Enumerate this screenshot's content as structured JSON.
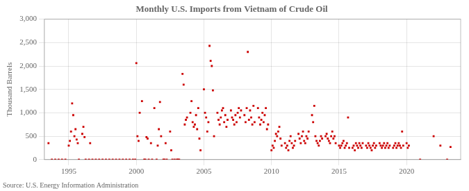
{
  "chart_data": {
    "type": "scatter",
    "title": "Monthly U.S. Imports from Vietnam of Crude Oil",
    "ylabel": "Thousand Barrels",
    "annotations": [
      "Source: U.S. Energy Information Administration"
    ],
    "color": "#cc0000",
    "marker": "square",
    "grid": true,
    "xlim": [
      1993.2,
      2024.0
    ],
    "xticks": [
      1995,
      2000,
      2005,
      2010,
      2015,
      2020
    ],
    "ylim": [
      0,
      3000
    ],
    "yticks": [
      0,
      500,
      {
        "value": 1000,
        "label": "1,000"
      },
      {
        "value": 1500,
        "label": "1,500"
      },
      {
        "value": 2000,
        "label": "2,000"
      },
      {
        "value": 2500,
        "label": "2,500"
      },
      {
        "value": 3000,
        "label": "3,000"
      }
    ],
    "x": [
      1993.5,
      1993.75,
      1994.0,
      1994.25,
      1994.5,
      1994.75,
      1995.0,
      1995.083,
      1995.167,
      1995.25,
      1995.333,
      1995.417,
      1995.5,
      1995.583,
      1995.667,
      1995.75,
      1996.0,
      1996.083,
      1996.167,
      1996.25,
      1996.5,
      1996.583,
      1996.75,
      1997.0,
      1997.25,
      1997.5,
      1997.75,
      1998.0,
      1998.25,
      1998.5,
      1998.75,
      1999.0,
      1999.25,
      1999.5,
      1999.75,
      1999.917,
      2000.0,
      2000.083,
      2000.167,
      2000.25,
      2000.417,
      2000.583,
      2000.667,
      2000.75,
      2000.833,
      2000.917,
      2001.083,
      2001.167,
      2001.333,
      2001.5,
      2001.583,
      2001.667,
      2001.75,
      2001.833,
      2002.0,
      2002.083,
      2002.167,
      2002.25,
      2002.5,
      2002.583,
      2002.667,
      2002.833,
      2003.0,
      2003.083,
      2003.167,
      2003.417,
      2003.5,
      2003.583,
      2003.667,
      2003.75,
      2004.0,
      2004.083,
      2004.167,
      2004.25,
      2004.333,
      2004.417,
      2004.5,
      2004.583,
      2004.667,
      2004.75,
      2005.0,
      2005.083,
      2005.167,
      2005.25,
      2005.333,
      2005.417,
      2005.5,
      2005.583,
      2005.667,
      2005.75,
      2006.0,
      2006.083,
      2006.167,
      2006.25,
      2006.333,
      2006.417,
      2006.5,
      2006.583,
      2006.667,
      2006.75,
      2007.0,
      2007.083,
      2007.167,
      2007.25,
      2007.333,
      2007.417,
      2007.5,
      2007.583,
      2007.667,
      2007.75,
      2008.0,
      2008.083,
      2008.167,
      2008.25,
      2008.333,
      2008.417,
      2008.5,
      2008.583,
      2008.667,
      2008.75,
      2009.0,
      2009.083,
      2009.167,
      2009.25,
      2009.333,
      2009.417,
      2009.5,
      2009.583,
      2009.667,
      2009.75,
      2010.0,
      2010.083,
      2010.167,
      2010.25,
      2010.333,
      2010.417,
      2010.5,
      2010.583,
      2010.667,
      2010.75,
      2011.0,
      2011.083,
      2011.167,
      2011.25,
      2011.333,
      2011.417,
      2011.5,
      2011.583,
      2011.667,
      2011.75,
      2012.0,
      2012.083,
      2012.167,
      2012.25,
      2012.333,
      2012.417,
      2012.5,
      2012.583,
      2012.667,
      2012.75,
      2013.0,
      2013.083,
      2013.167,
      2013.25,
      2013.333,
      2013.417,
      2013.5,
      2013.583,
      2013.667,
      2013.75,
      2014.0,
      2014.083,
      2014.167,
      2014.25,
      2014.333,
      2014.417,
      2014.5,
      2014.583,
      2014.667,
      2014.75,
      2015.0,
      2015.083,
      2015.167,
      2015.25,
      2015.333,
      2015.417,
      2015.5,
      2015.583,
      2015.667,
      2015.75,
      2016.0,
      2016.083,
      2016.167,
      2016.25,
      2016.333,
      2016.417,
      2016.5,
      2016.583,
      2016.667,
      2016.75,
      2017.0,
      2017.083,
      2017.167,
      2017.25,
      2017.333,
      2017.417,
      2017.5,
      2017.583,
      2017.667,
      2017.75,
      2018.0,
      2018.083,
      2018.167,
      2018.25,
      2018.333,
      2018.417,
      2018.5,
      2018.583,
      2018.667,
      2018.75,
      2019.0,
      2019.083,
      2019.167,
      2019.25,
      2019.333,
      2019.417,
      2019.5,
      2019.583,
      2019.667,
      2019.75,
      2020.0,
      2020.083,
      2020.167,
      2021.0,
      2022.0,
      2022.5,
      2023.0,
      2023.25
    ],
    "values": [
      350,
      0,
      0,
      0,
      0,
      0,
      300,
      400,
      600,
      1200,
      950,
      500,
      650,
      430,
      350,
      0,
      550,
      700,
      480,
      0,
      0,
      350,
      0,
      0,
      0,
      0,
      0,
      0,
      0,
      0,
      0,
      0,
      0,
      0,
      0,
      0,
      2060,
      500,
      400,
      1000,
      1250,
      0,
      0,
      480,
      450,
      0,
      350,
      0,
      1100,
      0,
      300,
      650,
      1230,
      500,
      0,
      0,
      350,
      0,
      600,
      200,
      0,
      0,
      0,
      0,
      0,
      1830,
      1600,
      750,
      850,
      900,
      1000,
      1250,
      800,
      700,
      750,
      950,
      650,
      1100,
      450,
      200,
      1500,
      1000,
      900,
      600,
      800,
      2430,
      2110,
      2000,
      1480,
      500,
      1000,
      850,
      750,
      900,
      1050,
      1100,
      800,
      950,
      700,
      850,
      1050,
      900,
      850,
      750,
      950,
      800,
      1000,
      1100,
      900,
      1050,
      950,
      800,
      1100,
      2300,
      850,
      1050,
      900,
      750,
      1150,
      800,
      1100,
      900,
      750,
      850,
      1000,
      800,
      950,
      1100,
      650,
      750,
      200,
      300,
      250,
      400,
      550,
      500,
      600,
      700,
      450,
      300,
      350,
      250,
      300,
      200,
      400,
      500,
      350,
      250,
      300,
      400,
      550,
      450,
      350,
      500,
      600,
      400,
      350,
      500,
      450,
      600,
      950,
      800,
      1150,
      500,
      400,
      350,
      300,
      400,
      500,
      450,
      500,
      550,
      450,
      400,
      350,
      500,
      600,
      450,
      500,
      350,
      300,
      250,
      300,
      350,
      400,
      250,
      300,
      350,
      900,
      250,
      250,
      300,
      200,
      350,
      300,
      250,
      350,
      300,
      250,
      350,
      300,
      250,
      350,
      300,
      250,
      200,
      300,
      350,
      250,
      300,
      350,
      300,
      250,
      300,
      350,
      250,
      300,
      350,
      250,
      300,
      250,
      300,
      350,
      250,
      300,
      350,
      300,
      250,
      600,
      300,
      350,
      250,
      300,
      0,
      500,
      300,
      0,
      270
    ]
  }
}
